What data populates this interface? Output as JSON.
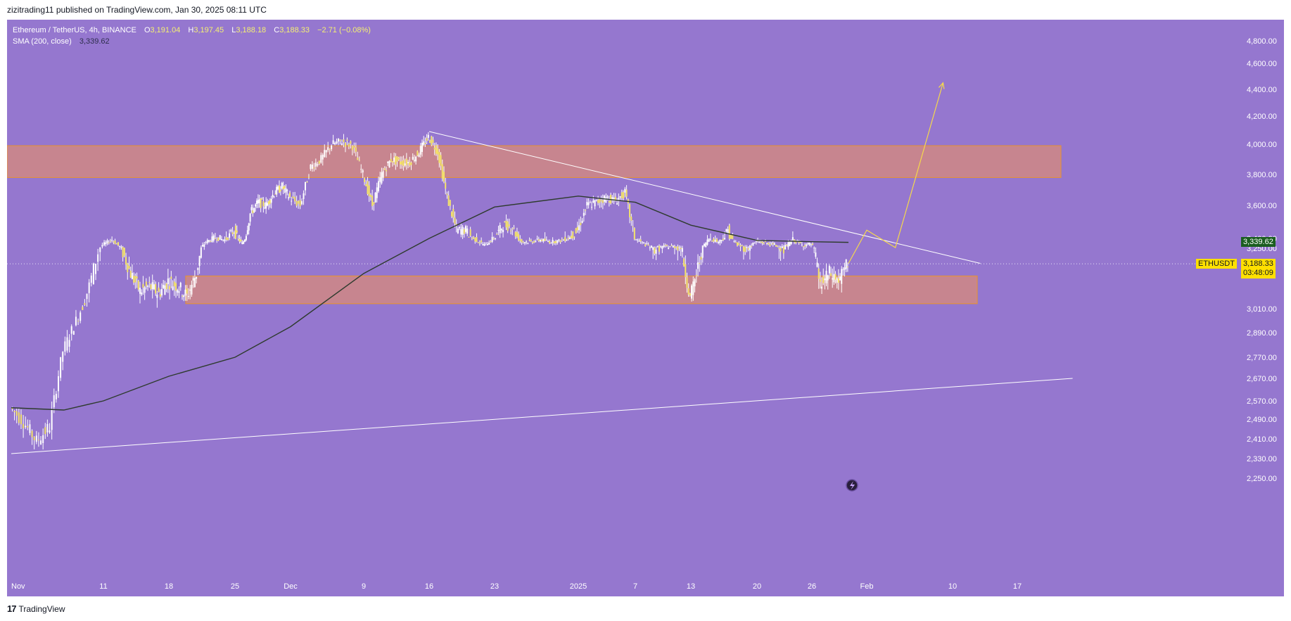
{
  "header": {
    "publish_line": "zizitrading11 published on TradingView.com, Jan 30, 2025 08:11 UTC"
  },
  "legend": {
    "symbol": "Ethereum / TetherUS, 4h, BINANCE",
    "open_label": "O",
    "open": "3,191.04",
    "high_label": "H",
    "high": "3,197.45",
    "low_label": "L",
    "low": "3,188.18",
    "close_label": "C",
    "close": "3,188.33",
    "change": "−2.71 (−0.08%)",
    "sma_label": "SMA (200, close)",
    "sma_value": "3,339.62"
  },
  "price_tags": {
    "sma": "3,339.62",
    "symbol": "ETHUSDT",
    "last": "3,188.33",
    "countdown": "03:48:09"
  },
  "footer": {
    "brand": "TradingView",
    "logo": "17"
  },
  "colors": {
    "background": "#9577cf",
    "candle": "#f5e46a",
    "wick": "#ffffff",
    "zone_fill": "#d88a7a",
    "zone_border": "#e8932d",
    "sma_line": "#2e3b2e",
    "trendline": "#ffffff",
    "projection": "#f5d84c",
    "sma_tag": "#1b5e20",
    "last_tag": "#ffe000"
  },
  "chart_data": {
    "type": "candlestick",
    "symbol": "ETHUSDT",
    "timeframe": "4h",
    "y_ticks": [
      "4,800.00",
      "4,600.00",
      "4,400.00",
      "4,200.00",
      "4,000.00",
      "3,800.00",
      "3,600.00",
      "3,400.00",
      "3,250.00",
      "3,010.00",
      "2,890.00",
      "2,770.00",
      "2,670.00",
      "2,570.00",
      "2,490.00",
      "2,410.00",
      "2,330.00",
      "2,250.00"
    ],
    "y_tick_values": [
      4800,
      4600,
      4400,
      4200,
      4000,
      3800,
      3600,
      3400,
      3250,
      3010,
      2890,
      2770,
      2670,
      2570,
      2490,
      2410,
      2330,
      2250
    ],
    "x_ticks": [
      "Nov",
      "11",
      "18",
      "25",
      "Dec",
      "9",
      "16",
      "23",
      "2025",
      "7",
      "13",
      "20",
      "26",
      "Feb",
      "10",
      "17"
    ],
    "x_tick_dates": [
      "2024-11-04",
      "2024-11-11",
      "2024-11-18",
      "2024-11-25",
      "2024-12-02",
      "2024-12-09",
      "2024-12-16",
      "2024-12-23",
      "2025-01-01",
      "2025-01-07",
      "2025-01-13",
      "2025-01-20",
      "2025-01-26",
      "2025-02-01",
      "2025-02-10",
      "2025-02-17"
    ],
    "price_path": [
      [
        "2024-11-04",
        2540
      ],
      [
        "2024-11-05",
        2480
      ],
      [
        "2024-11-06",
        2400
      ],
      [
        "2024-11-07",
        2460
      ],
      [
        "2024-11-08",
        2800
      ],
      [
        "2024-11-09",
        2950
      ],
      [
        "2024-11-10",
        3100
      ],
      [
        "2024-11-11",
        3300
      ],
      [
        "2024-11-12",
        3380
      ],
      [
        "2024-11-13",
        3250
      ],
      [
        "2024-11-14",
        3150
      ],
      [
        "2024-11-15",
        3080
      ],
      [
        "2024-11-16",
        3100
      ],
      [
        "2024-11-17",
        3070
      ],
      [
        "2024-11-18",
        3120
      ],
      [
        "2024-11-19",
        3100
      ],
      [
        "2024-11-20",
        3060
      ],
      [
        "2024-11-21",
        3150
      ],
      [
        "2024-11-22",
        3350
      ],
      [
        "2024-11-23",
        3400
      ],
      [
        "2024-11-24",
        3380
      ],
      [
        "2024-11-25",
        3450
      ],
      [
        "2024-11-26",
        3320
      ],
      [
        "2024-11-27",
        3550
      ],
      [
        "2024-11-28",
        3620
      ],
      [
        "2024-11-29",
        3600
      ],
      [
        "2024-11-30",
        3680
      ],
      [
        "2024-12-01",
        3720
      ],
      [
        "2024-12-02",
        3650
      ],
      [
        "2024-12-03",
        3600
      ],
      [
        "2024-12-04",
        3850
      ],
      [
        "2024-12-05",
        3900
      ],
      [
        "2024-12-06",
        4000
      ],
      [
        "2024-12-07",
        4020
      ],
      [
        "2024-12-08",
        3990
      ],
      [
        "2024-12-09",
        3800
      ],
      [
        "2024-12-10",
        3600
      ],
      [
        "2024-12-11",
        3800
      ],
      [
        "2024-12-12",
        3900
      ],
      [
        "2024-12-13",
        3880
      ],
      [
        "2024-12-14",
        3880
      ],
      [
        "2024-12-15",
        3950
      ],
      [
        "2024-12-16",
        4050
      ],
      [
        "2024-12-17",
        3950
      ],
      [
        "2024-12-18",
        3650
      ],
      [
        "2024-12-19",
        3450
      ],
      [
        "2024-12-20",
        3450
      ],
      [
        "2024-12-21",
        3380
      ],
      [
        "2024-12-22",
        3300
      ],
      [
        "2024-12-23",
        3400
      ],
      [
        "2024-12-24",
        3480
      ],
      [
        "2024-12-25",
        3470
      ],
      [
        "2024-12-26",
        3350
      ],
      [
        "2024-12-27",
        3350
      ],
      [
        "2024-12-28",
        3380
      ],
      [
        "2024-12-29",
        3350
      ],
      [
        "2024-12-30",
        3360
      ],
      [
        "2024-12-31",
        3400
      ],
      [
        "2025-01-01",
        3450
      ],
      [
        "2025-01-02",
        3600
      ],
      [
        "2025-01-03",
        3620
      ],
      [
        "2025-01-04",
        3650
      ],
      [
        "2025-01-05",
        3630
      ],
      [
        "2025-01-06",
        3680
      ],
      [
        "2025-01-07",
        3400
      ],
      [
        "2025-01-08",
        3320
      ],
      [
        "2025-01-09",
        3250
      ],
      [
        "2025-01-10",
        3270
      ],
      [
        "2025-01-11",
        3280
      ],
      [
        "2025-01-12",
        3260
      ],
      [
        "2025-01-13",
        3050
      ],
      [
        "2025-01-14",
        3200
      ],
      [
        "2025-01-15",
        3400
      ],
      [
        "2025-01-16",
        3350
      ],
      [
        "2025-01-17",
        3450
      ],
      [
        "2025-01-18",
        3300
      ],
      [
        "2025-01-19",
        3250
      ],
      [
        "2025-01-20",
        3350
      ],
      [
        "2025-01-21",
        3330
      ],
      [
        "2025-01-22",
        3300
      ],
      [
        "2025-01-23",
        3250
      ],
      [
        "2025-01-24",
        3380
      ],
      [
        "2025-01-25",
        3300
      ],
      [
        "2025-01-26",
        3310
      ],
      [
        "2025-01-27",
        3100
      ],
      [
        "2025-01-28",
        3150
      ],
      [
        "2025-01-29",
        3120
      ],
      [
        "2025-01-30",
        3188
      ]
    ],
    "sma_200_path": [
      [
        "2024-11-04",
        2540
      ],
      [
        "2024-11-08",
        2530
      ],
      [
        "2024-11-11",
        2570
      ],
      [
        "2024-11-18",
        2680
      ],
      [
        "2024-11-25",
        2770
      ],
      [
        "2024-12-02",
        2920
      ],
      [
        "2024-12-09",
        3150
      ],
      [
        "2024-12-16",
        3400
      ],
      [
        "2024-12-23",
        3590
      ],
      [
        "2025-01-01",
        3660
      ],
      [
        "2025-01-07",
        3620
      ],
      [
        "2025-01-13",
        3480
      ],
      [
        "2025-01-20",
        3370
      ],
      [
        "2025-01-26",
        3350
      ],
      [
        "2025-01-30",
        3339.62
      ]
    ],
    "resistance_zone": [
      3780,
      3990
    ],
    "support_zone": [
      3030,
      3140
    ],
    "descending_trendline": [
      [
        "2024-12-16",
        4090
      ],
      [
        "2025-02-13",
        3190
      ]
    ],
    "ascending_trendline": [
      [
        "2024-11-04",
        2350
      ],
      [
        "2025-02-23",
        2670
      ]
    ],
    "projection_path": [
      [
        "2025-01-30",
        3190
      ],
      [
        "2025-02-01",
        3450
      ],
      [
        "2025-02-04",
        3260
      ],
      [
        "2025-02-09",
        4450
      ]
    ],
    "last_price": 3188.33,
    "sma_value": 3339.62
  }
}
